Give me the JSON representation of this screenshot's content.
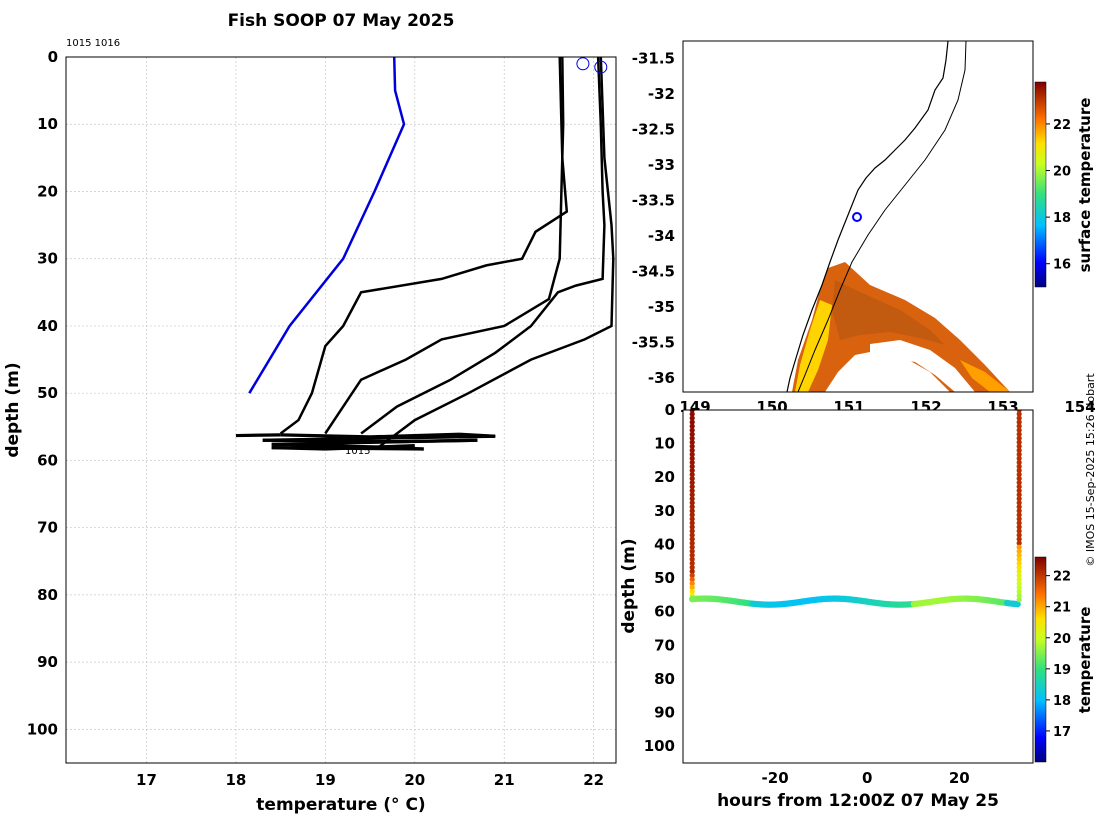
{
  "figure": {
    "title": "Fish SOOP 07 May 2025",
    "credit": "© IMOS 15-Sep-2025 15:26 Hobart"
  },
  "chart_data": [
    {
      "type": "line",
      "name": "profile",
      "xlabel": "temperature (° C)",
      "ylabel": "depth (m)",
      "xlim": [
        16.1,
        22.25
      ],
      "ylim": [
        105,
        0
      ],
      "xticks": [
        17,
        18,
        19,
        20,
        21,
        22
      ],
      "yticks": [
        0,
        10,
        20,
        30,
        40,
        50,
        60,
        70,
        80,
        90,
        100
      ],
      "grid": true,
      "annotations": [
        "1015 1016",
        "1015"
      ],
      "series": [
        {
          "color": "#0000dd",
          "points": [
            [
              19.77,
              0
            ],
            [
              19.78,
              5
            ],
            [
              19.88,
              10
            ],
            [
              19.55,
              20
            ],
            [
              19.2,
              30
            ],
            [
              18.6,
              40
            ],
            [
              18.15,
              50
            ]
          ]
        },
        {
          "color": "#000000",
          "points": [
            [
              21.62,
              0
            ],
            [
              21.65,
              15
            ],
            [
              21.7,
              23
            ],
            [
              21.35,
              26
            ],
            [
              21.2,
              30
            ],
            [
              20.8,
              31
            ],
            [
              20.3,
              33
            ],
            [
              19.4,
              35
            ],
            [
              19.2,
              40
            ],
            [
              19.0,
              43
            ],
            [
              18.85,
              50
            ],
            [
              18.7,
              54
            ],
            [
              18.5,
              56
            ]
          ]
        },
        {
          "color": "#000000",
          "points": [
            [
              21.65,
              0
            ],
            [
              21.66,
              10
            ],
            [
              21.64,
              20
            ],
            [
              21.62,
              30
            ],
            [
              21.5,
              36
            ],
            [
              21.0,
              40
            ],
            [
              20.3,
              42
            ],
            [
              19.9,
              45
            ],
            [
              19.4,
              48
            ],
            [
              19.2,
              52
            ],
            [
              19.0,
              56
            ]
          ]
        },
        {
          "color": "#000000",
          "points": [
            [
              22.05,
              0
            ],
            [
              22.08,
              10
            ],
            [
              22.1,
              20
            ],
            [
              22.12,
              25
            ],
            [
              22.1,
              33
            ],
            [
              21.8,
              34
            ],
            [
              21.6,
              35
            ],
            [
              21.3,
              40
            ],
            [
              20.9,
              44
            ],
            [
              20.4,
              48
            ],
            [
              19.8,
              52
            ],
            [
              19.4,
              56
            ]
          ]
        },
        {
          "color": "#000000",
          "points": [
            [
              22.08,
              0
            ],
            [
              22.12,
              15
            ],
            [
              22.2,
              25
            ],
            [
              22.22,
              30
            ],
            [
              22.2,
              40
            ],
            [
              21.9,
              42
            ],
            [
              21.3,
              45
            ],
            [
              20.6,
              50
            ],
            [
              20.0,
              54
            ],
            [
              19.6,
              58
            ]
          ]
        }
      ],
      "surface_markers": [
        [
          21.88,
          1
        ],
        [
          22.08,
          1.5
        ]
      ]
    },
    {
      "type": "heatmap",
      "name": "map",
      "colorbar_label": "surface temperature",
      "colorbar_ticks": [
        16,
        18,
        20,
        22
      ],
      "xlim": [
        149.0,
        153.0
      ],
      "ylim": [
        -36.2,
        -31.25
      ],
      "yticks": [
        -31.5,
        -32,
        -32.5,
        -33,
        -33.5,
        -34,
        -34.5,
        -35,
        -35.5,
        -36
      ],
      "ytick_labels": [
        "-31.5",
        "-32",
        "-32.5",
        "-33",
        "-33.5",
        "-34",
        "-34.5",
        "-35",
        "-35.5",
        "-36"
      ],
      "xticks": [
        149,
        150,
        151,
        152,
        153,
        154
      ],
      "xtick_labels": [
        "149",
        "150",
        "151",
        "152",
        "153",
        "154"
      ],
      "marker": {
        "lon": 151.25,
        "lat": -33.75
      }
    },
    {
      "type": "scatter",
      "name": "time-depth",
      "xlabel": "hours from 12:00Z 07 May 25",
      "ylabel": "depth (m)",
      "colorbar_label": "temperature",
      "colorbar_ticks": [
        17,
        18,
        19,
        20,
        21,
        22
      ],
      "xlim": [
        -40,
        36
      ],
      "ylim": [
        105,
        0
      ],
      "xticks": [
        -20,
        0,
        20
      ],
      "yticks": [
        0,
        10,
        20,
        30,
        40,
        50,
        60,
        70,
        80,
        90,
        100
      ],
      "series": [
        {
          "name": "descent",
          "x": -38,
          "depth_range": [
            0,
            57
          ],
          "temperature_range": [
            22.5,
            21.0
          ]
        },
        {
          "name": "bottom",
          "x_range": [
            -38,
            33
          ],
          "depth": 57,
          "temperature": 18.8
        },
        {
          "name": "ascent",
          "x": 33,
          "depth_range": [
            57,
            0
          ],
          "temperature_range": [
            19.5,
            22.3
          ]
        }
      ]
    }
  ]
}
